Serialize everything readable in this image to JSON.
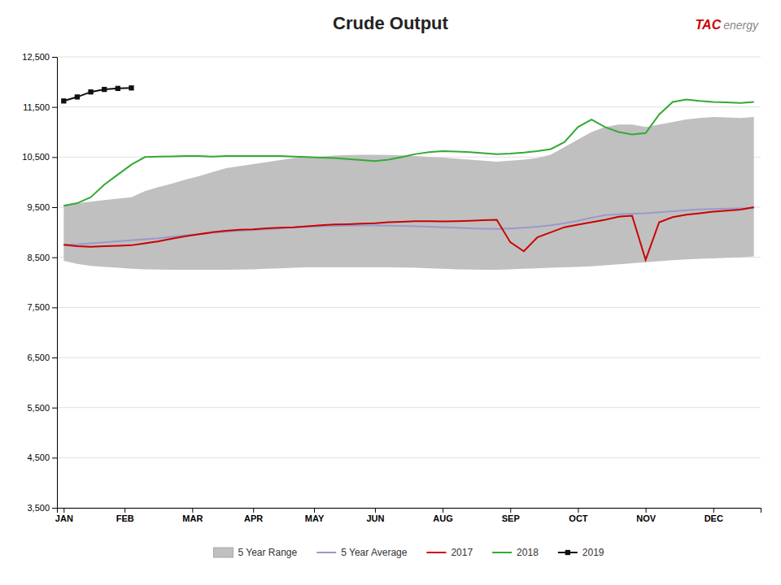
{
  "chart_data": {
    "type": "line",
    "title": "Crude Output",
    "annotations": [
      {
        "text": "TAC",
        "color": "#cc0000"
      },
      {
        "text": "energy",
        "color": "#888888"
      }
    ],
    "x": [
      0,
      1,
      2,
      3,
      4,
      5,
      6,
      7,
      8,
      9,
      10,
      11,
      12,
      13,
      14,
      15,
      16,
      17,
      18,
      19,
      20,
      21,
      22,
      23,
      24,
      25,
      26,
      27,
      28,
      29,
      30,
      31,
      32,
      33,
      34,
      35,
      36,
      37,
      38,
      39,
      40,
      41,
      42,
      43,
      44,
      45,
      46,
      47,
      48,
      49,
      50,
      51
    ],
    "xlim": [
      -0.5,
      51.5
    ],
    "xticks": [
      {
        "value": 0,
        "label": "JAN"
      },
      {
        "value": 4.5,
        "label": "FEB"
      },
      {
        "value": 9.5,
        "label": "MAR"
      },
      {
        "value": 14,
        "label": "APR"
      },
      {
        "value": 18.5,
        "label": "MAY"
      },
      {
        "value": 23,
        "label": "JUN"
      },
      {
        "value": 28,
        "label": "AUG"
      },
      {
        "value": 33,
        "label": "SEP"
      },
      {
        "value": 38,
        "label": "OCT"
      },
      {
        "value": 43,
        "label": "NOV"
      },
      {
        "value": 48,
        "label": "DEC"
      }
    ],
    "ylim": [
      3500,
      12500
    ],
    "yticks": [
      {
        "value": 3500,
        "label": "3,500"
      },
      {
        "value": 4500,
        "label": "4,500"
      },
      {
        "value": 5500,
        "label": "5,500"
      },
      {
        "value": 6500,
        "label": "6,500"
      },
      {
        "value": 7500,
        "label": "7,500"
      },
      {
        "value": 8500,
        "label": "8,500"
      },
      {
        "value": 9500,
        "label": "9,500"
      },
      {
        "value": 10500,
        "label": "10,500"
      },
      {
        "value": 11500,
        "label": "11,500"
      },
      {
        "value": 12500,
        "label": "12,500"
      }
    ],
    "grid": true,
    "legend": "bottom",
    "series": [
      {
        "name": "5 Year Range",
        "type": "range",
        "color": "#c0c0c0",
        "lower": [
          8430,
          8370,
          8330,
          8310,
          8290,
          8270,
          8260,
          8255,
          8250,
          8250,
          8250,
          8250,
          8250,
          8255,
          8260,
          8270,
          8280,
          8290,
          8300,
          8300,
          8300,
          8300,
          8300,
          8300,
          8300,
          8295,
          8290,
          8280,
          8270,
          8260,
          8255,
          8250,
          8250,
          8260,
          8270,
          8280,
          8290,
          8300,
          8310,
          8320,
          8340,
          8360,
          8380,
          8400,
          8420,
          8440,
          8460,
          8470,
          8480,
          8490,
          8500,
          8520
        ],
        "upper": [
          9550,
          9580,
          9610,
          9640,
          9670,
          9700,
          9820,
          9900,
          9970,
          10050,
          10120,
          10200,
          10280,
          10320,
          10360,
          10400,
          10440,
          10480,
          10500,
          10510,
          10530,
          10540,
          10545,
          10545,
          10540,
          10535,
          10520,
          10500,
          10490,
          10470,
          10450,
          10430,
          10410,
          10430,
          10450,
          10480,
          10550,
          10700,
          10850,
          11000,
          11100,
          11150,
          11150,
          11100,
          11150,
          11200,
          11250,
          11280,
          11300,
          11290,
          11280,
          11300
        ]
      },
      {
        "name": "5 Year Average",
        "type": "line",
        "color": "#9999cc",
        "values": [
          8750,
          8760,
          8780,
          8800,
          8820,
          8840,
          8860,
          8880,
          8910,
          8940,
          8960,
          8990,
          9010,
          9030,
          9045,
          9060,
          9080,
          9100,
          9110,
          9120,
          9125,
          9130,
          9135,
          9135,
          9130,
          9125,
          9120,
          9110,
          9100,
          9090,
          9080,
          9070,
          9065,
          9075,
          9090,
          9110,
          9140,
          9180,
          9230,
          9290,
          9340,
          9360,
          9370,
          9380,
          9400,
          9420,
          9440,
          9455,
          9465,
          9470,
          9475,
          9480
        ]
      },
      {
        "name": "2017",
        "type": "line",
        "color": "#cc0000",
        "values": [
          8750,
          8720,
          8710,
          8720,
          8730,
          8740,
          8780,
          8820,
          8870,
          8920,
          8960,
          9000,
          9030,
          9050,
          9060,
          9080,
          9090,
          9100,
          9120,
          9140,
          9155,
          9160,
          9170,
          9180,
          9200,
          9210,
          9220,
          9220,
          9215,
          9220,
          9230,
          9240,
          9250,
          8800,
          8620,
          8900,
          9000,
          9100,
          9150,
          9200,
          9250,
          9310,
          9330,
          8450,
          9200,
          9300,
          9350,
          9380,
          9410,
          9430,
          9450,
          9500
        ]
      },
      {
        "name": "2018",
        "type": "line",
        "color": "#33aa33",
        "values": [
          9530,
          9580,
          9700,
          9950,
          10150,
          10350,
          10500,
          10510,
          10515,
          10520,
          10520,
          10510,
          10520,
          10520,
          10520,
          10520,
          10520,
          10510,
          10500,
          10490,
          10480,
          10460,
          10440,
          10420,
          10450,
          10500,
          10560,
          10600,
          10620,
          10610,
          10600,
          10580,
          10560,
          10570,
          10590,
          10620,
          10660,
          10800,
          11100,
          11250,
          11100,
          11000,
          10950,
          10980,
          11350,
          11600,
          11650,
          11620,
          11600,
          11590,
          11580,
          11600
        ]
      },
      {
        "name": "2019",
        "type": "line",
        "color": "#111111",
        "marker": "square",
        "x": [
          0,
          1,
          2,
          3,
          4,
          5
        ],
        "values": [
          11620,
          11700,
          11800,
          11850,
          11870,
          11880
        ]
      }
    ]
  }
}
